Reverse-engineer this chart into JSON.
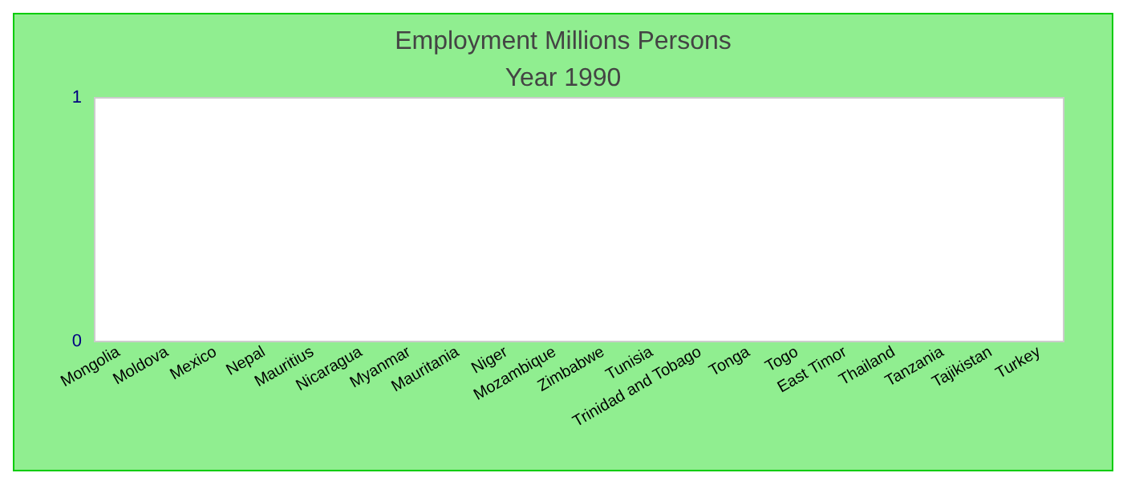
{
  "chart_data": {
    "type": "bar",
    "title": "Employment Millions Persons",
    "subtitle": "Year 1990",
    "categories": [
      "Mongolia",
      "Moldova",
      "Mexico",
      "Nepal",
      "Mauritius",
      "Nicaragua",
      "Myanmar",
      "Mauritania",
      "Niger",
      "Mozambique",
      "Zimbabwe",
      "Tunisia",
      "Trinidad and Tobago",
      "Tonga",
      "Togo",
      "East Timor",
      "Thailand",
      "Tanzania",
      "Tajikistan",
      "Turkey"
    ],
    "values": [
      null,
      null,
      null,
      null,
      null,
      null,
      null,
      null,
      null,
      null,
      null,
      null,
      null,
      null,
      null,
      null,
      null,
      null,
      null,
      null
    ],
    "ylim": [
      0,
      1
    ],
    "yticks": [
      0,
      1
    ],
    "grid": false
  }
}
